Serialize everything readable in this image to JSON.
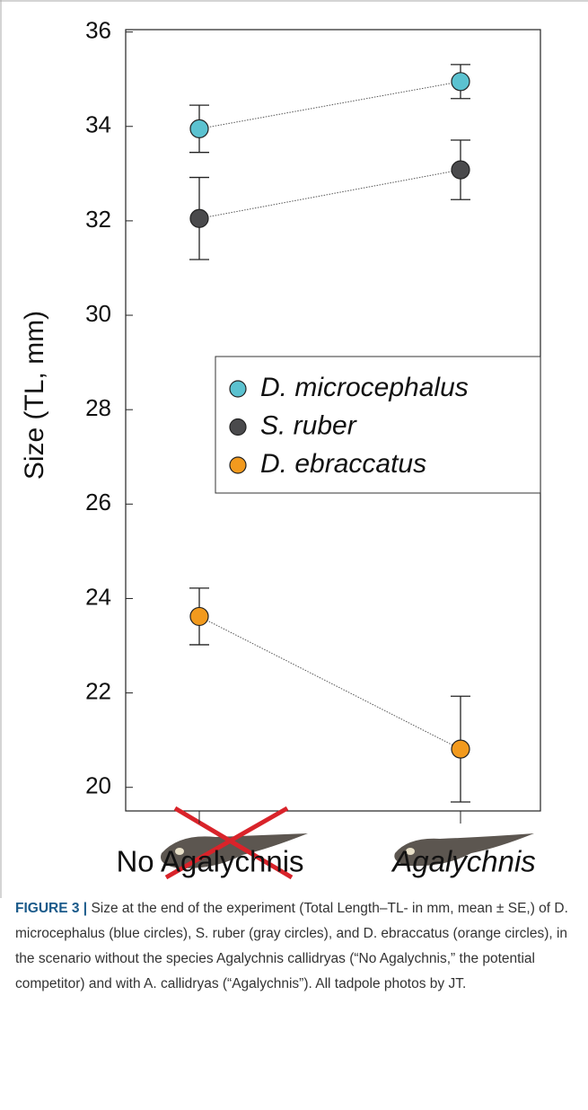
{
  "chart_data": {
    "type": "scatter",
    "y_label": "Size (TL, mm)",
    "categories": [
      "No Agalychnis",
      "Agalychnis"
    ],
    "ylim": [
      19.5,
      36.05
    ],
    "yticks": [
      20,
      22,
      24,
      26,
      28,
      30,
      32,
      34,
      36
    ],
    "series": [
      {
        "name": "D. microcephalus",
        "color": "#5bc2d0",
        "values": [
          33.95,
          34.95
        ],
        "errors": [
          0.5,
          0.36
        ]
      },
      {
        "name": "S. ruber",
        "color": "#4a4a4c",
        "values": [
          32.05,
          33.08
        ],
        "errors": [
          0.87,
          0.63
        ]
      },
      {
        "name": "D. ebraccatus",
        "color": "#f29a1e",
        "values": [
          23.62,
          20.81
        ],
        "errors": [
          0.6,
          1.12
        ]
      }
    ]
  },
  "caption": {
    "label": "FIGURE 3 |",
    "text": "Size at the end of the experiment (Total Length–TL- in mm, mean ± SE,) of D. microcephalus (blue circles), S. ruber (gray circles), and D. ebraccatus (orange circles), in the scenario without the species Agalychnis callidryas (“No Agalychnis,” the potential competitor) and with A. callidryas (“Agalychnis”). All tadpole photos by JT."
  }
}
